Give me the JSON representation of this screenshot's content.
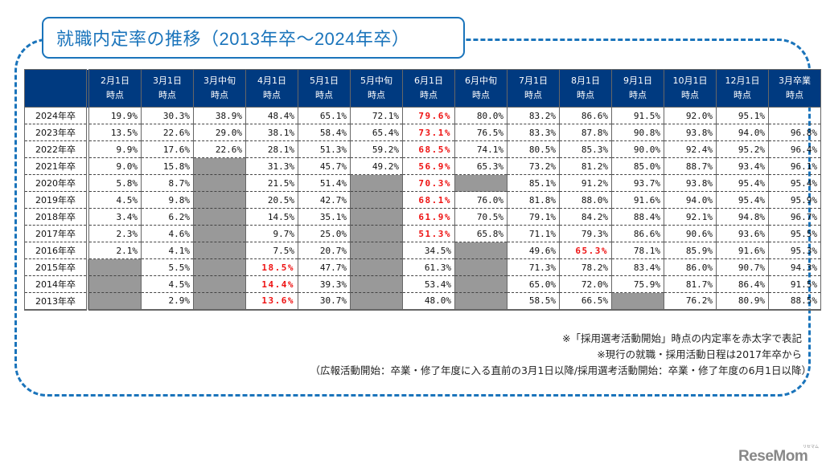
{
  "title": "就職内定率の推移（2013年卒～2024年卒）",
  "columns": [
    "2月1日\n時点",
    "3月1日\n時点",
    "3月中旬\n時点",
    "4月1日\n時点",
    "5月1日\n時点",
    "5月中旬\n時点",
    "6月1日\n時点",
    "6月中旬\n時点",
    "7月1日\n時点",
    "8月1日\n時点",
    "9月1日\n時点",
    "10月1日\n時点",
    "12月1日\n時点",
    "3月卒業\n時点"
  ],
  "rows": [
    {
      "label": "2024年卒",
      "red": 6,
      "cells": [
        "19.9%",
        "30.3%",
        "38.9%",
        "48.4%",
        "65.1%",
        "72.1%",
        "79.6%",
        "80.0%",
        "83.2%",
        "86.6%",
        "91.5%",
        "92.0%",
        "95.1%",
        ""
      ]
    },
    {
      "label": "2023年卒",
      "red": 6,
      "cells": [
        "13.5%",
        "22.6%",
        "29.0%",
        "38.1%",
        "58.4%",
        "65.4%",
        "73.1%",
        "76.5%",
        "83.3%",
        "87.8%",
        "90.8%",
        "93.8%",
        "94.0%",
        "96.8%"
      ]
    },
    {
      "label": "2022年卒",
      "red": 6,
      "cells": [
        "9.9%",
        "17.6%",
        "22.6%",
        "28.1%",
        "51.3%",
        "59.2%",
        "68.5%",
        "74.1%",
        "80.5%",
        "85.3%",
        "90.0%",
        "92.4%",
        "95.2%",
        "96.4%"
      ]
    },
    {
      "label": "2021年卒",
      "red": 6,
      "cells": [
        "9.0%",
        "15.8%",
        null,
        "31.3%",
        "45.7%",
        "49.2%",
        "56.9%",
        "65.3%",
        "73.2%",
        "81.2%",
        "85.0%",
        "88.7%",
        "93.4%",
        "96.1%"
      ]
    },
    {
      "label": "2020年卒",
      "red": 6,
      "cells": [
        "5.8%",
        "8.7%",
        null,
        "21.5%",
        "51.4%",
        null,
        "70.3%",
        null,
        "85.1%",
        "91.2%",
        "93.7%",
        "93.8%",
        "95.4%",
        "95.4%"
      ]
    },
    {
      "label": "2019年卒",
      "red": 6,
      "cells": [
        "4.5%",
        "9.8%",
        null,
        "20.5%",
        "42.7%",
        null,
        "68.1%",
        "76.0%",
        "81.8%",
        "88.0%",
        "91.6%",
        "94.0%",
        "95.4%",
        "95.9%"
      ]
    },
    {
      "label": "2018年卒",
      "red": 6,
      "cells": [
        "3.4%",
        "6.2%",
        null,
        "14.5%",
        "35.1%",
        null,
        "61.9%",
        "70.5%",
        "79.1%",
        "84.2%",
        "88.4%",
        "92.1%",
        "94.8%",
        "96.7%"
      ]
    },
    {
      "label": "2017年卒",
      "red": 6,
      "cells": [
        "2.3%",
        "4.6%",
        null,
        "9.7%",
        "25.0%",
        null,
        "51.3%",
        "65.8%",
        "71.1%",
        "79.3%",
        "86.6%",
        "90.6%",
        "93.6%",
        "95.5%"
      ]
    },
    {
      "label": "2016年卒",
      "red": 9,
      "cells": [
        "2.1%",
        "4.1%",
        null,
        "7.5%",
        "20.7%",
        null,
        "34.5%",
        null,
        "49.6%",
        "65.3%",
        "78.1%",
        "85.9%",
        "91.6%",
        "95.3%"
      ]
    },
    {
      "label": "2015年卒",
      "red": 3,
      "cells": [
        null,
        "5.5%",
        null,
        "18.5%",
        "47.7%",
        null,
        "61.3%",
        null,
        "71.3%",
        "78.2%",
        "83.4%",
        "86.0%",
        "90.7%",
        "94.3%"
      ]
    },
    {
      "label": "2014年卒",
      "red": 3,
      "cells": [
        null,
        "4.5%",
        null,
        "14.4%",
        "39.3%",
        null,
        "53.4%",
        null,
        "65.0%",
        "72.0%",
        "75.9%",
        "81.7%",
        "86.4%",
        "91.5%"
      ]
    },
    {
      "label": "2013年卒",
      "red": 3,
      "cells": [
        null,
        "2.9%",
        null,
        "13.6%",
        "30.7%",
        null,
        "48.0%",
        null,
        "58.5%",
        "66.5%",
        null,
        "76.2%",
        "80.9%",
        "88.5%"
      ]
    }
  ],
  "notes": [
    "※「採用選考活動開始」時点の内定率を赤太字で表記",
    "※現行の就職・採用活動日程は2017年卒から",
    "（広報活動開始：卒業・修了年度に入る直前の3月1日以降/採用選考活動開始：卒業・修了年度の6月1日以降）"
  ],
  "logo": {
    "text": "ReseMom",
    "sub": "リセマム"
  },
  "colors": {
    "accent": "#1a74bb",
    "header": "#003a80",
    "highlight": "#ee1111",
    "na": "#999999"
  }
}
